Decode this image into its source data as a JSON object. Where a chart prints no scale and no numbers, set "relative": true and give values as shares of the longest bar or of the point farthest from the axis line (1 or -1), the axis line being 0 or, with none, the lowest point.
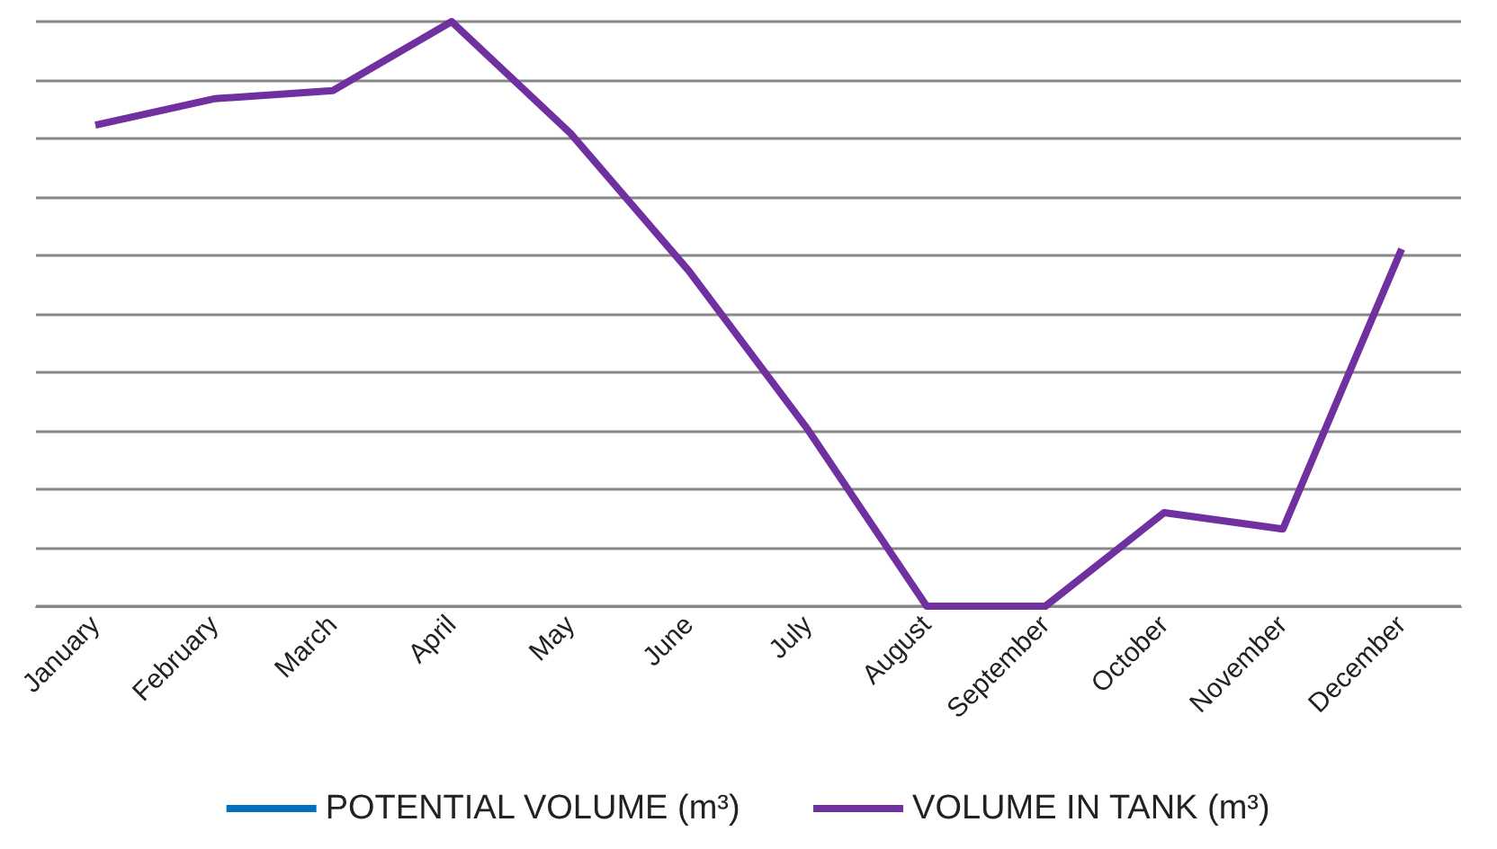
{
  "chart_data": {
    "type": "line",
    "relative": true,
    "grid": "y",
    "legend": "bottom",
    "marker": "none",
    "line_style": "solid",
    "categories": [
      "January",
      "February",
      "March",
      "April",
      "May",
      "June",
      "July",
      "August",
      "September",
      "October",
      "November",
      "December"
    ],
    "series": [
      {
        "name": "POTENTIAL VOLUME (m³)",
        "color": "#0070c0",
        "values": [
          null,
          null,
          null,
          null,
          null,
          null,
          null,
          null,
          null,
          null,
          null,
          null
        ]
      },
      {
        "name": "VOLUME IN TANK (m³)",
        "color": "#7030a0",
        "values": [
          0.823,
          0.868,
          0.882,
          1,
          0.809,
          0.573,
          0.302,
          0,
          0,
          0.16,
          0.132,
          0.611
        ]
      }
    ]
  }
}
